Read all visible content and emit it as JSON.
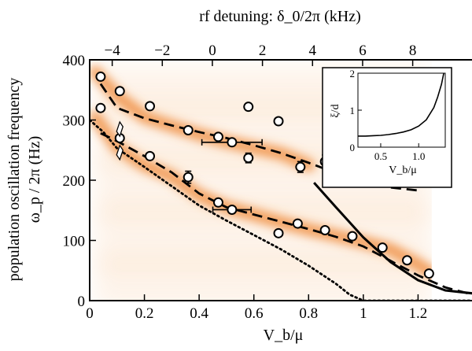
{
  "chart_data": {
    "type": "scatter",
    "title": "",
    "xlabel": "V_b/μ",
    "ylabel_line1": "population oscillation frequency",
    "ylabel_line2": "ω_p / 2π (Hz)",
    "top_xlabel": "rf detuning: δ_0/2π  (kHz)",
    "xlim": [
      0,
      1.4
    ],
    "ylim": [
      0,
      400
    ],
    "top_xlim": [
      -4.9,
      10.4
    ],
    "x_ticks": [
      0,
      0.2,
      0.4,
      0.6,
      0.8,
      1,
      1.2
    ],
    "x_tick_labels": [
      "0",
      "0.2",
      "0.4",
      "0.6",
      "0.8",
      "1",
      "1.2"
    ],
    "y_ticks": [
      0,
      100,
      200,
      300,
      400
    ],
    "y_tick_labels": [
      "0",
      "100",
      "200",
      "300",
      "400"
    ],
    "top_ticks": [
      -4,
      -2,
      0,
      2,
      4,
      6,
      8
    ],
    "top_tick_labels": [
      "−4",
      "−2",
      "0",
      "2",
      "4",
      "6",
      "8"
    ],
    "heatmap_branches": {
      "upper": [
        [
          0.02,
          380
        ],
        [
          0.1,
          340
        ],
        [
          0.2,
          305
        ],
        [
          0.3,
          290
        ],
        [
          0.4,
          276
        ],
        [
          0.5,
          264
        ],
        [
          0.6,
          254
        ],
        [
          0.7,
          244
        ],
        [
          0.8,
          225
        ]
      ],
      "lower": [
        [
          0.02,
          305
        ],
        [
          0.1,
          255
        ],
        [
          0.2,
          225
        ],
        [
          0.3,
          206
        ],
        [
          0.4,
          175
        ],
        [
          0.5,
          155
        ],
        [
          0.6,
          143
        ],
        [
          0.7,
          130
        ],
        [
          0.8,
          118
        ],
        [
          0.9,
          108
        ],
        [
          1.0,
          97
        ],
        [
          1.1,
          85
        ],
        [
          1.2,
          60
        ],
        [
          1.25,
          45
        ]
      ]
    },
    "series": [
      {
        "style": "markers",
        "x": [
          0.04,
          0.04,
          0.11,
          0.11,
          0.22,
          0.22,
          0.36,
          0.36,
          0.47,
          0.47,
          0.52,
          0.52,
          0.58,
          0.58,
          0.69,
          0.69,
          0.76,
          0.77,
          0.86,
          0.86,
          0.96,
          1.07,
          1.16,
          1.24
        ],
        "y": [
          372,
          320,
          348,
          270,
          323,
          240,
          283,
          205,
          272,
          163,
          263,
          151,
          322,
          237,
          298,
          112,
          128,
          222,
          117,
          231,
          107,
          88,
          67,
          45
        ],
        "x_err": [
          0,
          0,
          0,
          0,
          0,
          0,
          0,
          0,
          0,
          0,
          0.11,
          0.07,
          0,
          0,
          0,
          0,
          0,
          0,
          0,
          0,
          0,
          0,
          0,
          0
        ],
        "y_err": [
          0,
          0,
          0,
          0,
          0,
          0,
          0,
          10,
          0,
          0,
          0,
          0,
          0,
          8,
          0,
          0,
          0,
          9,
          0,
          11,
          0,
          0,
          0,
          0
        ]
      },
      {
        "style": "dashed",
        "x": [
          0.04,
          0.1,
          0.2,
          0.3,
          0.4,
          0.5,
          0.6,
          0.7,
          0.8,
          0.9,
          1.0,
          1.1,
          1.2
        ],
        "y": [
          360,
          320,
          303,
          291,
          280,
          270,
          258,
          245,
          229,
          212,
          198,
          188,
          183
        ]
      },
      {
        "style": "dashed",
        "x": [
          0.04,
          0.1,
          0.2,
          0.3,
          0.4,
          0.5,
          0.6,
          0.7,
          0.8,
          0.9,
          1.0,
          1.1,
          1.2,
          1.3,
          1.4
        ],
        "y": [
          278,
          265,
          240,
          213,
          178,
          155,
          143,
          131,
          119,
          106,
          90,
          66,
          42,
          22,
          10
        ]
      },
      {
        "style": "solid",
        "x": [
          0.82,
          0.9,
          1.0,
          1.1,
          1.2,
          1.3,
          1.4
        ],
        "y": [
          196,
          155,
          105,
          64,
          34,
          17,
          12
        ]
      },
      {
        "style": "dotted",
        "x": [
          0,
          0.05,
          0.1,
          0.2,
          0.3,
          0.4,
          0.5,
          0.6,
          0.7,
          0.8,
          0.9,
          0.95,
          1.0,
          1.1,
          1.2,
          1.3,
          1.4
        ],
        "y": [
          300,
          280,
          253,
          222,
          190,
          158,
          133,
          109,
          85,
          58,
          28,
          10,
          0,
          0,
          0,
          0,
          0
        ]
      }
    ],
    "diamond_markers": [
      [
        0.11,
        285
      ],
      [
        0.11,
        246
      ]
    ],
    "inset": {
      "xlabel": "V_b/μ",
      "ylabel": "ξ/d",
      "xlim": [
        0.2,
        1.35
      ],
      "ylim": [
        0,
        2
      ],
      "x_ticks": [
        0.5,
        1.0
      ],
      "x_tick_labels": [
        "0.5",
        "1.0"
      ],
      "y_ticks": [
        0,
        1,
        2
      ],
      "y_tick_labels": [
        "0",
        "1",
        "2"
      ],
      "x": [
        0.2,
        0.3,
        0.4,
        0.5,
        0.6,
        0.7,
        0.8,
        0.9,
        1.0,
        1.1,
        1.2,
        1.25,
        1.3,
        1.33
      ],
      "y": [
        0.3,
        0.3,
        0.31,
        0.32,
        0.34,
        0.37,
        0.41,
        0.47,
        0.57,
        0.74,
        1.07,
        1.35,
        1.7,
        2.0
      ]
    }
  }
}
